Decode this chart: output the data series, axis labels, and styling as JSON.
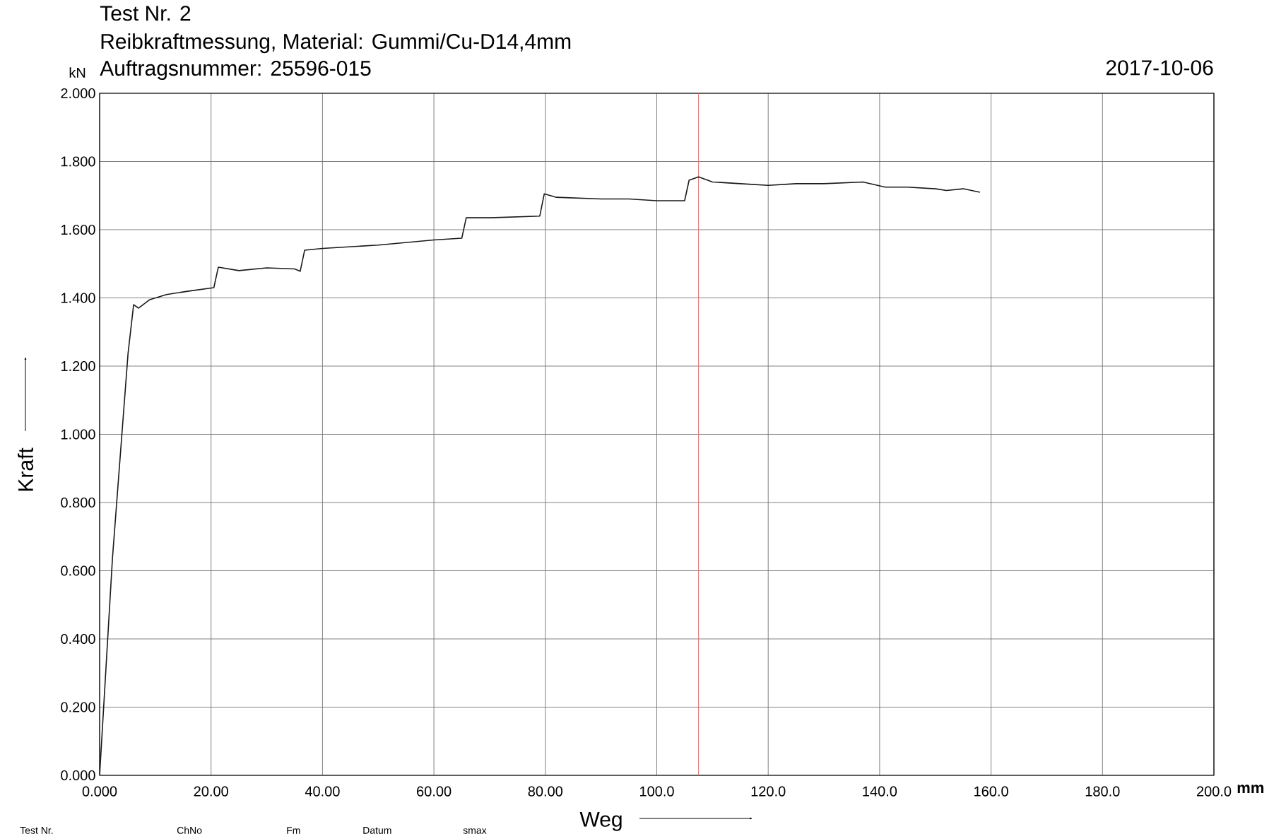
{
  "chart_data": {
    "type": "line",
    "title": "Test Nr.  2",
    "subtitle": "Reibkraftmessung, Material: Gummi/Cu-D14,4mm",
    "xlabel": "Weg",
    "ylabel": "Kraft",
    "annotations": [
      "Auftragsnummer: 25596-015",
      "2017-10-06",
      "kN",
      "mm",
      "Test Nr.",
      "ChNo",
      "Fm",
      "Datum",
      "smax"
    ],
    "x": [
      0,
      2.3,
      5.1,
      6.1,
      7,
      9,
      12,
      16,
      20.5,
      21.3,
      25,
      30,
      35,
      36,
      36.8,
      40,
      50,
      60,
      65,
      65.8,
      70,
      79,
      79.8,
      82,
      90,
      95,
      100,
      105,
      105.8,
      107.5,
      110,
      115,
      120,
      125,
      130,
      137,
      141,
      145,
      150,
      152,
      155,
      158
    ],
    "series": [
      {
        "color": "#1a1a1a",
        "values": [
          0,
          0.636,
          1.237,
          1.38,
          1.37,
          1.395,
          1.41,
          1.42,
          1.43,
          1.49,
          1.48,
          1.488,
          1.485,
          1.478,
          1.54,
          1.545,
          1.555,
          1.57,
          1.575,
          1.635,
          1.635,
          1.64,
          1.705,
          1.695,
          1.69,
          1.69,
          1.685,
          1.685,
          1.745,
          1.755,
          1.74,
          1.735,
          1.73,
          1.735,
          1.735,
          1.74,
          1.725,
          1.725,
          1.72,
          1.715,
          1.72,
          1.71
        ]
      }
    ],
    "xlim": [
      0,
      200
    ],
    "ylim": [
      0,
      2
    ],
    "xticks": [
      {
        "value": 0,
        "label": "0.000"
      },
      {
        "value": 20,
        "label": "20.00"
      },
      {
        "value": 40,
        "label": "40.00"
      },
      {
        "value": 60,
        "label": "60.00"
      },
      {
        "value": 80,
        "label": "80.00"
      },
      {
        "value": 100,
        "label": "100.0"
      },
      {
        "value": 120,
        "label": "120.0"
      },
      {
        "value": 140,
        "label": "140.0"
      },
      {
        "value": 160,
        "label": "160.0"
      },
      {
        "value": 180,
        "label": "180.0"
      },
      {
        "value": 200,
        "label": "200.0"
      }
    ],
    "yticks": [
      {
        "value": 0,
        "label": "0.000"
      },
      {
        "value": 0.2,
        "label": "0.200"
      },
      {
        "value": 0.4,
        "label": "0.400"
      },
      {
        "value": 0.6,
        "label": "0.600"
      },
      {
        "value": 0.8,
        "label": "0.800"
      },
      {
        "value": 1,
        "label": "1.000"
      },
      {
        "value": 1.2,
        "label": "1.200"
      },
      {
        "value": 1.4,
        "label": "1.400"
      },
      {
        "value": 1.6,
        "label": "1.600"
      },
      {
        "value": 1.8,
        "label": "1.800"
      },
      {
        "value": 2,
        "label": "2.000"
      }
    ],
    "grid": true,
    "ref_lines": [
      {
        "axis": "x",
        "value": 107.5,
        "color": "#e07070"
      }
    ]
  }
}
